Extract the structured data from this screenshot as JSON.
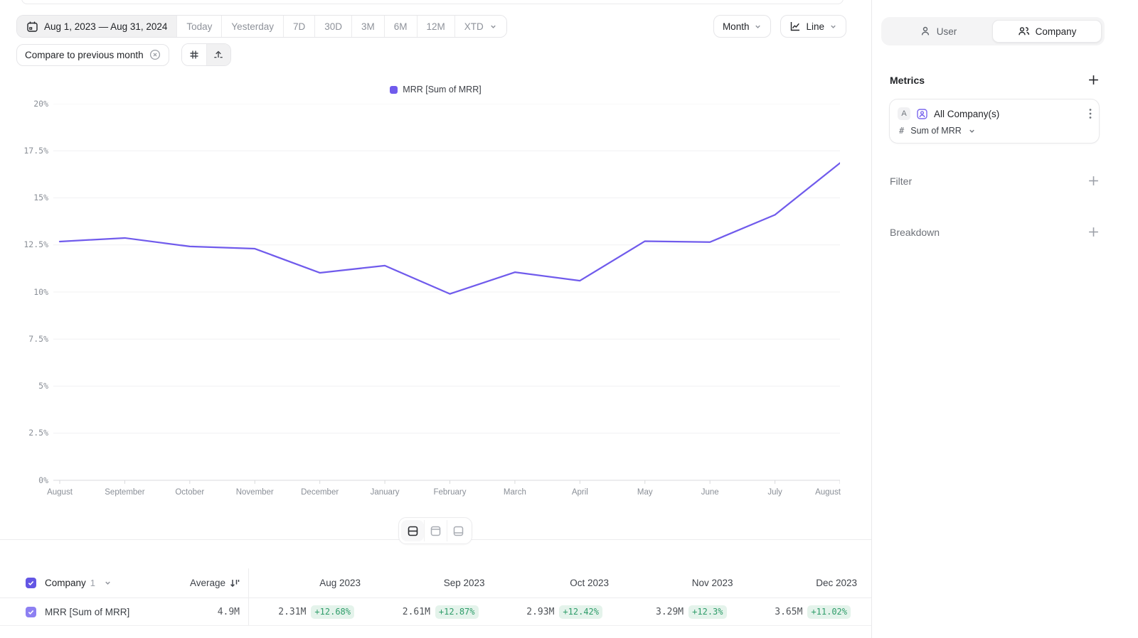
{
  "toolbar": {
    "date_range": "Aug 1, 2023 — Aug 31, 2024",
    "presets": [
      "Today",
      "Yesterday",
      "7D",
      "30D",
      "3M",
      "6M",
      "12M"
    ],
    "xtd_label": "XTD",
    "granularity": "Month",
    "chart_type": "Line",
    "compare_chip": "Compare to previous month"
  },
  "chart_data": {
    "type": "line",
    "legend": [
      {
        "label": "MRR [Sum of MRR]",
        "color": "#705bec"
      }
    ],
    "x": [
      "August",
      "September",
      "October",
      "November",
      "December",
      "January",
      "February",
      "March",
      "April",
      "May",
      "June",
      "July",
      "August"
    ],
    "series": [
      {
        "name": "MRR [Sum of MRR]",
        "values": [
          12.68,
          12.87,
          12.42,
          12.3,
          11.02,
          11.4,
          9.9,
          11.05,
          10.6,
          12.7,
          12.65,
          14.1,
          16.85
        ]
      }
    ],
    "yticks": [
      "0%",
      "2.5%",
      "5%",
      "7.5%",
      "10%",
      "12.5%",
      "15%",
      "17.5%",
      "20%"
    ],
    "ylim": [
      0,
      20
    ],
    "grid": true,
    "legend_position": "top"
  },
  "table": {
    "entity": "Company",
    "entity_count": "1",
    "average_label": "Average",
    "columns": [
      "Aug 2023",
      "Sep 2023",
      "Oct 2023",
      "Nov 2023",
      "Dec 2023"
    ],
    "rows": [
      {
        "label": "MRR [Sum of MRR]",
        "average": "4.9M",
        "cells": [
          {
            "value": "2.31M",
            "delta": "+12.68%"
          },
          {
            "value": "2.61M",
            "delta": "+12.87%"
          },
          {
            "value": "2.93M",
            "delta": "+12.42%"
          },
          {
            "value": "3.29M",
            "delta": "+12.3%"
          },
          {
            "value": "3.65M",
            "delta": "+11.02%"
          }
        ]
      }
    ]
  },
  "sidebar": {
    "toggle": {
      "user": "User",
      "company": "Company",
      "active": "Company"
    },
    "metrics_title": "Metrics",
    "metric_card": {
      "badge": "A",
      "name": "All Company(s)",
      "aggregation": "Sum of MRR"
    },
    "filter_label": "Filter",
    "breakdown_label": "Breakdown"
  },
  "colors": {
    "accent": "#6356e4",
    "accent_light": "#8d80f2",
    "line": "#705bec",
    "legend_swatch": "#705bec",
    "badge_text": "#2f9d6a",
    "badge_bg": "#e4f3eb",
    "axis_text": "#8a8f97",
    "gridline": "#f1f1f3",
    "metric_icon": "#7b68ee"
  }
}
